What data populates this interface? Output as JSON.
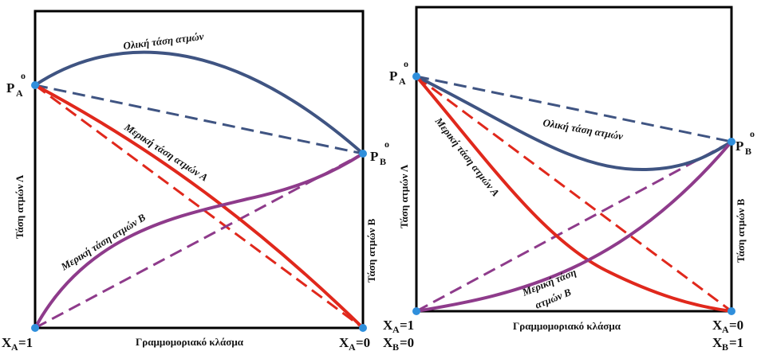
{
  "left_diagram": {
    "total_label": "Ολική τάση ατμών",
    "partial_a_label": "Μερική τάση ατμών Α",
    "partial_b_label": "Μερική τάση ατμών Β",
    "y_left_label": "Τάση ατμών Λ",
    "y_right_label": "Τάση ατμών Β",
    "x_axis_label": "Γραμμομοριακό κλάσμα",
    "pa": {
      "main": "P",
      "sub": "A",
      "sup": "o"
    },
    "pb": {
      "main": "P",
      "sub": "B",
      "sup": "o"
    },
    "xa_left": {
      "main": "X",
      "sub": "A",
      "val": "=1"
    },
    "xa_right": {
      "main": "X",
      "sub": "A",
      "val": "=0"
    }
  },
  "right_diagram": {
    "total_label": "Ολική τάση ατμών",
    "partial_a_label": "Μερική τάση ατμών Α",
    "partial_b_line1": "Μερική τάση",
    "partial_b_line2": "ατμών Β",
    "y_left_label": "Τάση ατμών Λ",
    "y_right_label": "Τάση ατμών Β",
    "x_axis_label": "Γραμμομοριακό κλάσμα",
    "pa": {
      "main": "P",
      "sub": "A",
      "sup": "o"
    },
    "pb": {
      "main": "P",
      "sub": "B",
      "sup": "o"
    },
    "xa_left": {
      "main": "X",
      "sub": "A",
      "val": "=1"
    },
    "xb_left": {
      "main": "X",
      "sub": "B",
      "val": "=0"
    },
    "xa_right": {
      "main": "X",
      "sub": "A",
      "val": "=0"
    },
    "xb_right": {
      "main": "X",
      "sub": "B",
      "val": "=1"
    }
  },
  "colors": {
    "total": "#3f5482",
    "partial_a": "#e0281c",
    "partial_b": "#8e3b8b",
    "point": "#2f8fdc"
  }
}
